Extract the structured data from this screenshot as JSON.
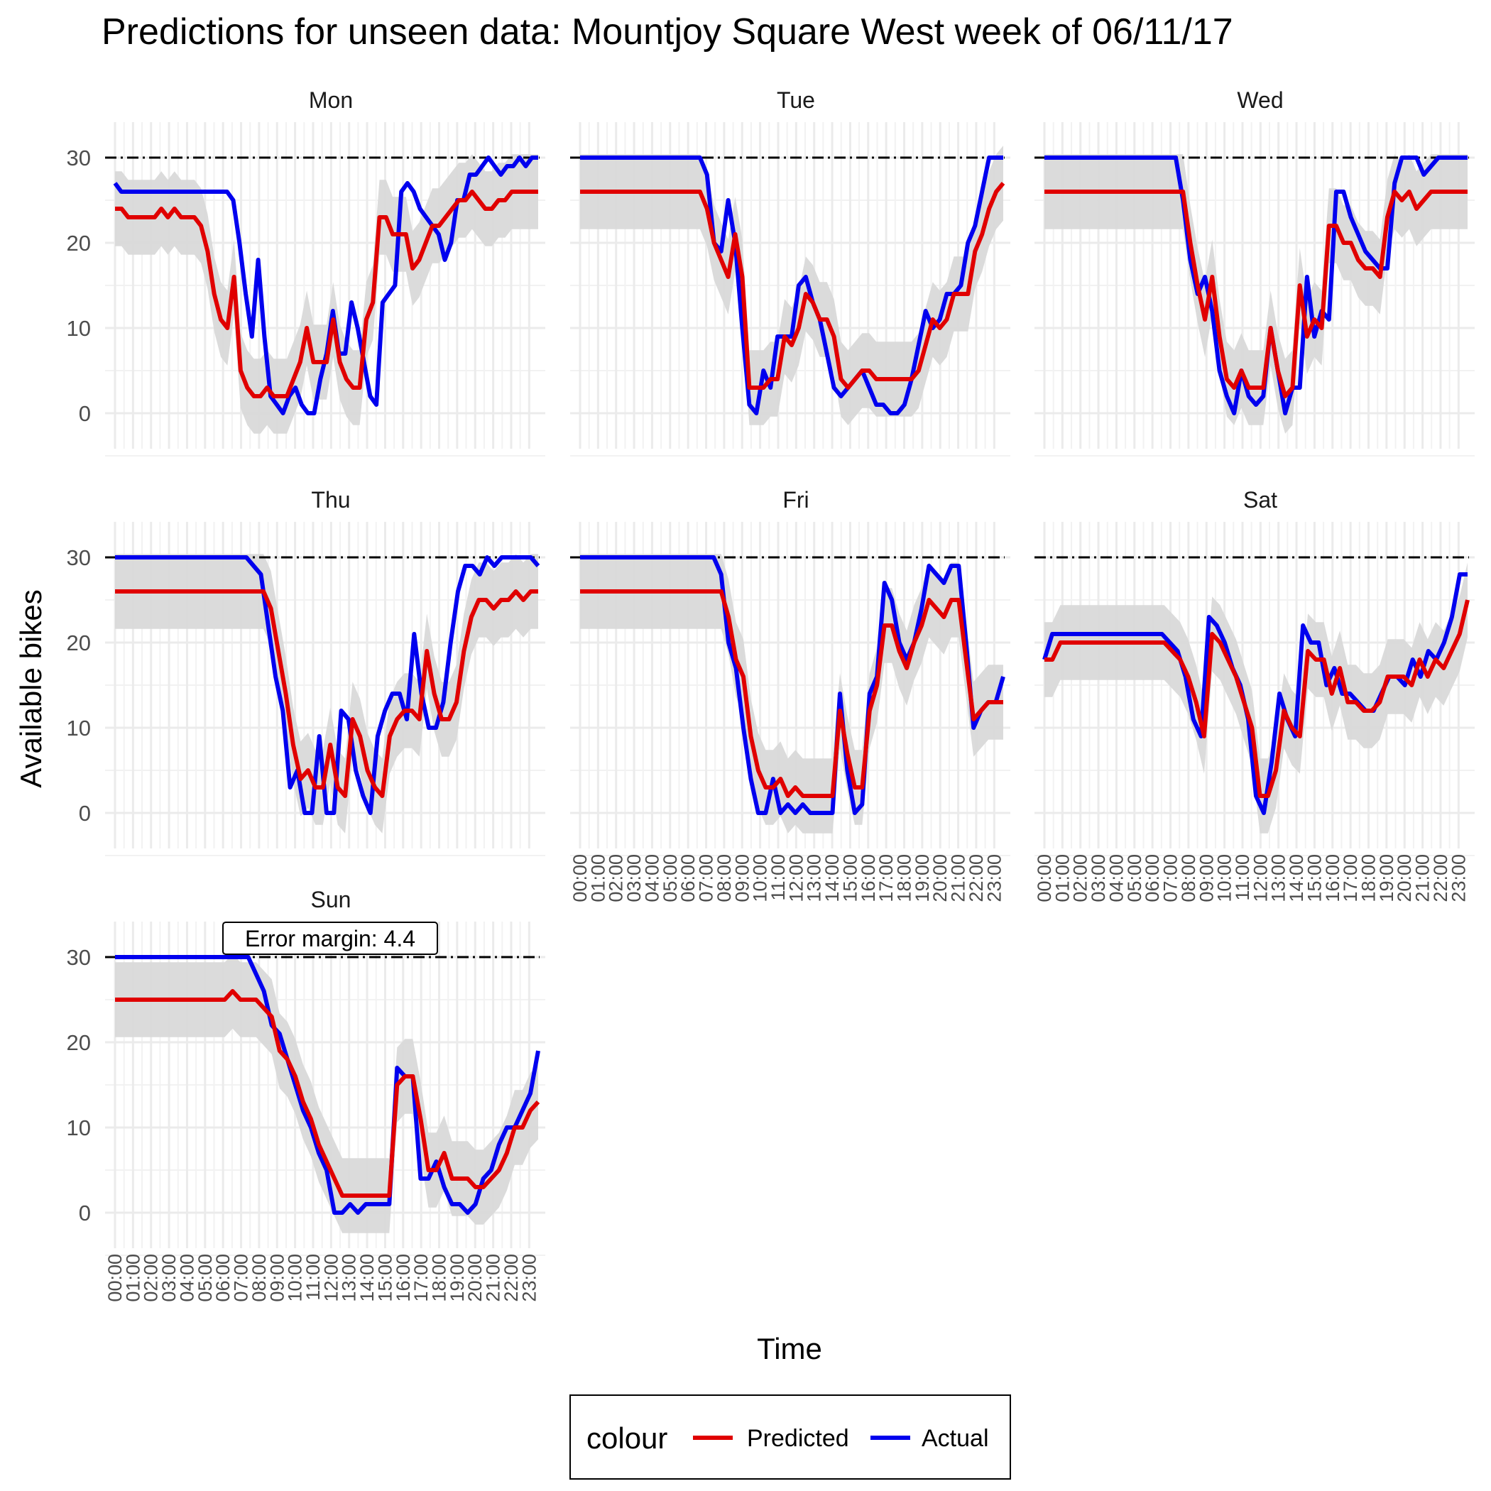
{
  "chart_data": {
    "type": "line",
    "title": "Predictions for unseen data: Mountjoy Square West week of 06/11/17",
    "xlabel": "Time",
    "ylabel": "Available bikes",
    "x_ticks": [
      "00:00",
      "01:00",
      "02:00",
      "03:00",
      "04:00",
      "05:00",
      "06:00",
      "07:00",
      "08:00",
      "09:00",
      "10:00",
      "11:00",
      "12:00",
      "13:00",
      "14:00",
      "15:00",
      "16:00",
      "17:00",
      "18:00",
      "19:00",
      "20:00",
      "21:00",
      "22:00",
      "23:00"
    ],
    "y_ticks": [
      0,
      10,
      20,
      30
    ],
    "ylim": [
      -4,
      34
    ],
    "xlim": [
      0,
      23.5
    ],
    "capacity_line": 30,
    "error_margin": 4.4,
    "annotation": "Error margin: 4.4",
    "grid": true,
    "legend": {
      "title": "colour",
      "position": "bottom",
      "entries": [
        {
          "name": "Predicted",
          "color": "#e00000"
        },
        {
          "name": "Actual",
          "color": "#0000ee"
        }
      ]
    },
    "series_colors": {
      "Predicted": "#e00000",
      "Actual": "#0000ee",
      "band": "#d9d9d9",
      "capacity": "#000000"
    },
    "panels": [
      {
        "name": "Mon",
        "actual": [
          27,
          26,
          26,
          26,
          26,
          26,
          26,
          26,
          26,
          26,
          26,
          26,
          26,
          26,
          26,
          26,
          26,
          26,
          26,
          25,
          20,
          14,
          9,
          18,
          9,
          2,
          1,
          0,
          2,
          3,
          1,
          0,
          0,
          4,
          7,
          12,
          7,
          7,
          13,
          10,
          6,
          2,
          1,
          13,
          14,
          15,
          26,
          27,
          26,
          24,
          23,
          22,
          21,
          18,
          20,
          25,
          25,
          28,
          28,
          29,
          30,
          29,
          28,
          29,
          29,
          30,
          29,
          30,
          30
        ],
        "predicted": [
          24,
          24,
          23,
          23,
          23,
          23,
          23,
          24,
          23,
          24,
          23,
          23,
          23,
          22,
          19,
          14,
          11,
          10,
          16,
          5,
          3,
          2,
          2,
          3,
          2,
          2,
          2,
          4,
          6,
          10,
          6,
          6,
          6,
          11,
          6,
          4,
          3,
          3,
          11,
          13,
          23,
          23,
          21,
          21,
          21,
          17,
          18,
          20,
          22,
          22,
          23,
          24,
          25,
          25,
          26,
          25,
          24,
          24,
          25,
          25,
          26,
          26,
          26,
          26,
          26
        ]
      },
      {
        "name": "Tue",
        "actual": [
          30,
          30,
          30,
          30,
          30,
          30,
          30,
          30,
          30,
          30,
          30,
          30,
          30,
          30,
          30,
          30,
          30,
          30,
          28,
          20,
          19,
          25,
          20,
          10,
          1,
          0,
          5,
          3,
          9,
          9,
          9,
          15,
          16,
          13,
          11,
          7,
          3,
          2,
          3,
          4,
          5,
          3,
          1,
          1,
          0,
          0,
          1,
          4,
          8,
          12,
          10,
          11,
          14,
          14,
          15,
          20,
          22,
          26,
          30,
          30,
          30
        ],
        "predicted": [
          26,
          26,
          26,
          26,
          26,
          26,
          26,
          26,
          26,
          26,
          26,
          26,
          26,
          26,
          26,
          26,
          26,
          26,
          24,
          20,
          18,
          16,
          21,
          16,
          3,
          3,
          3,
          4,
          4,
          9,
          8,
          10,
          14,
          13,
          11,
          11,
          9,
          4,
          3,
          4,
          5,
          5,
          4,
          4,
          4,
          4,
          4,
          4,
          5,
          8,
          11,
          10,
          11,
          14,
          14,
          14,
          19,
          21,
          24,
          26,
          27
        ]
      },
      {
        "name": "Wed",
        "actual": [
          30,
          30,
          30,
          30,
          30,
          30,
          30,
          30,
          30,
          30,
          30,
          30,
          30,
          30,
          30,
          30,
          30,
          30,
          30,
          25,
          18,
          14,
          16,
          12,
          5,
          2,
          0,
          5,
          2,
          1,
          2,
          10,
          5,
          0,
          3,
          3,
          16,
          9,
          12,
          11,
          26,
          26,
          23,
          21,
          19,
          18,
          17,
          17,
          27,
          30,
          30,
          30,
          28,
          29,
          30,
          30,
          30,
          30,
          30
        ],
        "predicted": [
          26,
          26,
          26,
          26,
          26,
          26,
          26,
          26,
          26,
          26,
          26,
          26,
          26,
          26,
          26,
          26,
          26,
          26,
          26,
          26,
          20,
          15,
          11,
          16,
          9,
          4,
          3,
          5,
          3,
          3,
          3,
          10,
          5,
          2,
          3,
          15,
          9,
          11,
          10,
          22,
          22,
          20,
          20,
          18,
          17,
          17,
          16,
          23,
          26,
          25,
          26,
          24,
          25,
          26,
          26,
          26,
          26,
          26,
          26
        ]
      },
      {
        "name": "Thu",
        "actual": [
          30,
          30,
          30,
          30,
          30,
          30,
          30,
          30,
          30,
          30,
          30,
          30,
          30,
          30,
          30,
          30,
          30,
          30,
          30,
          29,
          28,
          22,
          16,
          12,
          3,
          5,
          0,
          0,
          9,
          0,
          0,
          12,
          11,
          5,
          2,
          0,
          9,
          12,
          14,
          14,
          11,
          21,
          14,
          10,
          10,
          13,
          20,
          26,
          29,
          29,
          28,
          30,
          29,
          30,
          30,
          30,
          30,
          30,
          29
        ],
        "predicted": [
          26,
          26,
          26,
          26,
          26,
          26,
          26,
          26,
          26,
          26,
          26,
          26,
          26,
          26,
          26,
          26,
          26,
          26,
          26,
          26,
          26,
          24,
          19,
          14,
          8,
          4,
          5,
          3,
          3,
          8,
          3,
          2,
          11,
          9,
          5,
          3,
          2,
          9,
          11,
          12,
          12,
          11,
          19,
          14,
          11,
          11,
          13,
          19,
          23,
          25,
          25,
          24,
          25,
          25,
          26,
          25,
          26,
          26
        ]
      },
      {
        "name": "Fri",
        "actual": [
          30,
          30,
          30,
          30,
          30,
          30,
          30,
          30,
          30,
          30,
          30,
          30,
          30,
          30,
          30,
          30,
          30,
          30,
          30,
          28,
          20,
          17,
          10,
          4,
          0,
          0,
          4,
          0,
          1,
          0,
          1,
          0,
          0,
          0,
          0,
          14,
          5,
          0,
          1,
          14,
          16,
          27,
          25,
          20,
          18,
          20,
          24,
          29,
          28,
          27,
          29,
          29,
          20,
          10,
          12,
          13,
          13,
          16
        ],
        "predicted": [
          26,
          26,
          26,
          26,
          26,
          26,
          26,
          26,
          26,
          26,
          26,
          26,
          26,
          26,
          26,
          26,
          26,
          26,
          26,
          26,
          23,
          18,
          16,
          9,
          5,
          3,
          3,
          4,
          2,
          3,
          2,
          2,
          2,
          2,
          2,
          12,
          7,
          3,
          3,
          12,
          15,
          22,
          22,
          19,
          17,
          20,
          22,
          25,
          24,
          23,
          25,
          25,
          18,
          11,
          12,
          13,
          13,
          13
        ]
      },
      {
        "name": "Sat",
        "actual": [
          18,
          21,
          21,
          21,
          21,
          21,
          21,
          21,
          21,
          21,
          21,
          21,
          21,
          21,
          21,
          21,
          20,
          19,
          16,
          11,
          9,
          23,
          22,
          20,
          17,
          15,
          11,
          2,
          0,
          6,
          14,
          11,
          9,
          22,
          20,
          20,
          15,
          17,
          14,
          14,
          13,
          12,
          12,
          14,
          16,
          16,
          15,
          18,
          16,
          19,
          18,
          20,
          23,
          28,
          28
        ],
        "predicted": [
          18,
          18,
          20,
          20,
          20,
          20,
          20,
          20,
          20,
          20,
          20,
          20,
          20,
          20,
          20,
          20,
          19,
          18,
          16,
          13,
          9,
          21,
          20,
          18,
          16,
          13,
          10,
          2,
          2,
          5,
          12,
          10,
          9,
          19,
          18,
          18,
          14,
          17,
          13,
          13,
          12,
          12,
          13,
          16,
          16,
          16,
          15,
          18,
          16,
          18,
          17,
          19,
          21,
          25
        ]
      },
      {
        "name": "Sun",
        "actual": [
          30,
          30,
          30,
          30,
          30,
          30,
          30,
          30,
          30,
          30,
          30,
          30,
          30,
          30,
          30,
          30,
          30,
          30,
          28,
          26,
          22,
          21,
          18,
          15,
          12,
          10,
          7,
          5,
          0,
          0,
          1,
          0,
          1,
          1,
          1,
          1,
          17,
          16,
          16,
          4,
          4,
          6,
          3,
          1,
          1,
          0,
          1,
          4,
          5,
          8,
          10,
          10,
          12,
          14,
          19
        ],
        "predicted": [
          25,
          25,
          25,
          25,
          25,
          25,
          25,
          25,
          25,
          25,
          25,
          25,
          25,
          25,
          25,
          26,
          25,
          25,
          25,
          24,
          23,
          19,
          18,
          16,
          13,
          11,
          8,
          6,
          4,
          2,
          2,
          2,
          2,
          2,
          2,
          2,
          15,
          16,
          16,
          11,
          5,
          5,
          7,
          4,
          4,
          4,
          3,
          3,
          4,
          5,
          7,
          10,
          10,
          12,
          13
        ]
      }
    ]
  }
}
